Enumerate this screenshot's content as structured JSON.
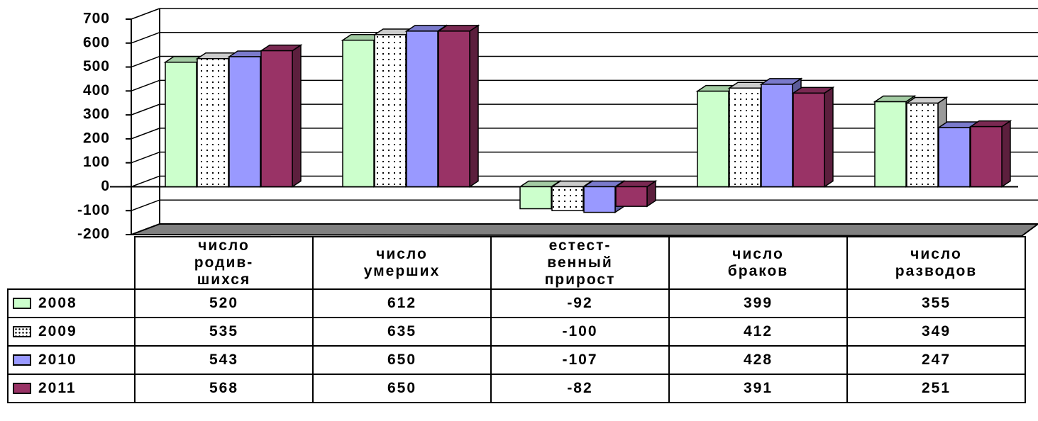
{
  "chart_data": {
    "type": "bar",
    "categories": [
      "число\nродив-\nшихся",
      "число\nумерших",
      "естест-\nвенный\nприрост",
      "число\nбраков",
      "число\nразводов"
    ],
    "series": [
      {
        "name": "2008",
        "color": "#ccffcc",
        "values": [
          520,
          612,
          -92,
          399,
          355
        ]
      },
      {
        "name": "2009",
        "color": "#ffffff",
        "pattern": "dotted",
        "values": [
          535,
          635,
          -100,
          412,
          349
        ]
      },
      {
        "name": "2010",
        "color": "#9999ff",
        "values": [
          543,
          650,
          -107,
          428,
          247
        ]
      },
      {
        "name": "2011",
        "color": "#993366",
        "values": [
          568,
          650,
          -82,
          391,
          251
        ]
      }
    ],
    "ylim": [
      -200,
      700
    ],
    "yticks": [
      -200,
      -100,
      0,
      100,
      200,
      300,
      400,
      500,
      600,
      700
    ],
    "grid": true
  }
}
